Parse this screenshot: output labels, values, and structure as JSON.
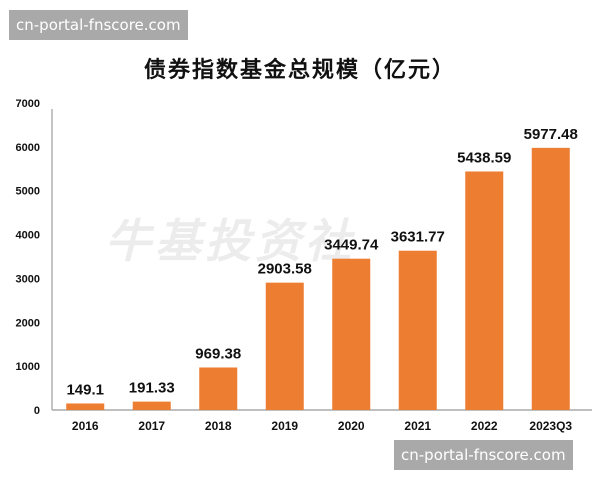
{
  "watermark": "cn-portal-fnscore.com",
  "logo_text": "牛基投资社",
  "chart_data": {
    "type": "bar",
    "title": "债券指数基金总规模（亿元）",
    "categories": [
      "2016",
      "2017",
      "2018",
      "2019",
      "2020",
      "2021",
      "2022",
      "2023Q3"
    ],
    "values": [
      149.1,
      191.33,
      969.38,
      2903.58,
      3449.74,
      3631.77,
      5438.59,
      5977.48
    ],
    "value_labels": [
      "149.1",
      "191.33",
      "969.38",
      "2903.58",
      "3449.74",
      "3631.77",
      "5438.59",
      "5977.48"
    ],
    "yticks": [
      0,
      1000,
      2000,
      3000,
      4000,
      5000,
      6000,
      7000
    ],
    "ylim": [
      0,
      7000
    ],
    "xlabel": "",
    "ylabel": "",
    "grid": false,
    "bar_color": "#ED7D31"
  }
}
